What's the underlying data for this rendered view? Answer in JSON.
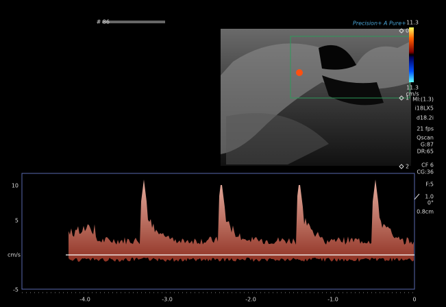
{
  "header": {
    "frame": "# 86",
    "brand_a": "Precision+",
    "brand_b": "A Pure+"
  },
  "color_scale": {
    "max": "11.3",
    "min": "11.3",
    "unit": "cm/s"
  },
  "depth_markers": [
    "0",
    "1",
    "2"
  ],
  "settings": [
    "MI:(1.3)",
    "i18LX5",
    "d18.2i",
    "21 fps",
    "Qscan",
    "G:87",
    "DR:65",
    "CF 6",
    "CG:36",
    "F:5"
  ],
  "angle": [
    "1.0",
    "0°",
    "0.8cm"
  ],
  "spectrum": {
    "y_labels": [
      "10",
      "5",
      "cm/s",
      "-5"
    ],
    "x_labels": [
      "-4.0",
      "-3.0",
      "-2.0",
      "-1.0",
      "0"
    ]
  }
}
